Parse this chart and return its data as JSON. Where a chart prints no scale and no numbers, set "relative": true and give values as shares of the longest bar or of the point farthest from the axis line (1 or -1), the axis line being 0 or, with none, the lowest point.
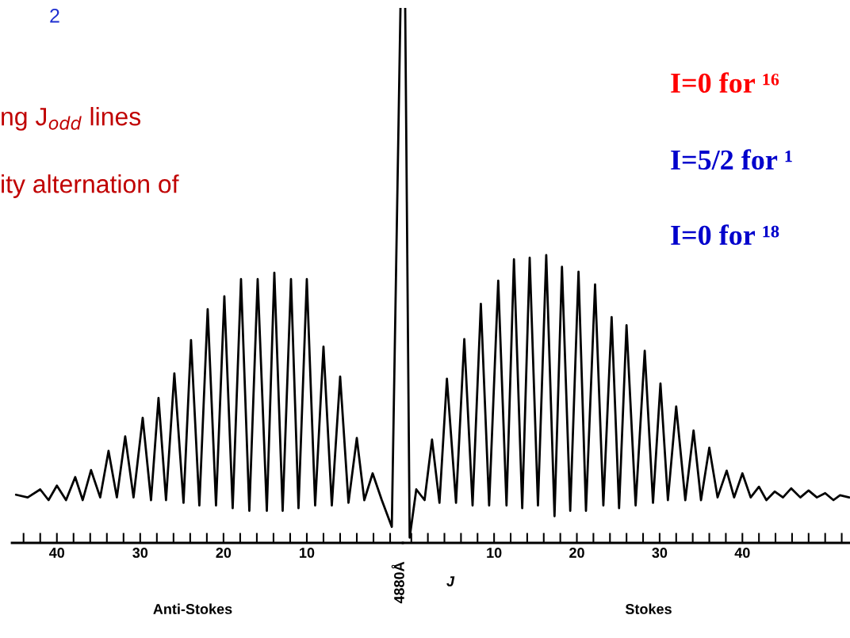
{
  "chart_data": [
    {
      "type": "line",
      "relative": true,
      "xlabel": "Anti-Stokes",
      "color": "#000000",
      "xlim": [
        45.4,
        -1.52
      ],
      "xticks": [
        {
          "value": 44,
          "label": null
        },
        {
          "value": 42,
          "label": null
        },
        40,
        {
          "value": 38,
          "label": null
        },
        {
          "value": 36,
          "label": null
        },
        {
          "value": 34,
          "label": null
        },
        {
          "value": 32,
          "label": null
        },
        30,
        {
          "value": 28,
          "label": null
        },
        {
          "value": 26,
          "label": null
        },
        {
          "value": 24,
          "label": null
        },
        {
          "value": 22,
          "label": null
        },
        20,
        {
          "value": 18,
          "label": null
        },
        {
          "value": 16,
          "label": null
        },
        {
          "value": 14,
          "label": null
        },
        {
          "value": 12,
          "label": null
        },
        10,
        {
          "value": 8,
          "label": null
        },
        {
          "value": 6,
          "label": null
        },
        {
          "value": 4,
          "label": null
        },
        {
          "value": 2,
          "label": null
        },
        {
          "value": 0,
          "label": null
        }
      ],
      "x": [
        44.9,
        43.5,
        42.0,
        41.0,
        40.0,
        38.9,
        37.8,
        36.9,
        35.9,
        34.8,
        33.8,
        32.8,
        31.8,
        30.8,
        29.7,
        28.7,
        27.8,
        26.9,
        25.9,
        24.8,
        23.9,
        22.9,
        21.9,
        20.9,
        19.9,
        18.9,
        17.9,
        16.9,
        15.9,
        14.8,
        13.9,
        12.9,
        11.9,
        11.0,
        10.0,
        9.0,
        8.0,
        7.0,
        6.0,
        5.0,
        4.0,
        3.1,
        2.1,
        1.0,
        -0.2,
        -1.24
      ],
      "values": [
        0.09,
        0.085,
        0.1,
        0.08,
        0.107,
        0.08,
        0.123,
        0.08,
        0.136,
        0.085,
        0.172,
        0.085,
        0.199,
        0.085,
        0.234,
        0.08,
        0.271,
        0.08,
        0.317,
        0.075,
        0.379,
        0.07,
        0.437,
        0.07,
        0.461,
        0.065,
        0.493,
        0.06,
        0.493,
        0.06,
        0.505,
        0.06,
        0.493,
        0.065,
        0.493,
        0.07,
        0.367,
        0.07,
        0.311,
        0.075,
        0.196,
        0.08,
        0.13,
        0.08,
        0.03,
        1.0
      ],
      "annotations": [
        "2",
        "ng J$_{odd}$ lines",
        "ity alternation of"
      ]
    },
    {
      "type": "line",
      "relative": true,
      "xlabel": "Stokes",
      "color": "#000000",
      "xlim": [
        -1.03,
        53.0
      ],
      "xticks": [
        {
          "value": 0,
          "label": null
        },
        {
          "value": 2,
          "label": null
        },
        {
          "value": 4,
          "label": null
        },
        {
          "value": 6,
          "label": null
        },
        {
          "value": 8,
          "label": null
        },
        10,
        {
          "value": 12,
          "label": null
        },
        {
          "value": 14,
          "label": null
        },
        {
          "value": 16,
          "label": null
        },
        {
          "value": 18,
          "label": null
        },
        20,
        {
          "value": 22,
          "label": null
        },
        {
          "value": 24,
          "label": null
        },
        {
          "value": 26,
          "label": null
        },
        {
          "value": 28,
          "label": null
        },
        30,
        {
          "value": 32,
          "label": null
        },
        {
          "value": 34,
          "label": null
        },
        {
          "value": 36,
          "label": null
        },
        {
          "value": 38,
          "label": null
        },
        40,
        {
          "value": 42,
          "label": null
        },
        {
          "value": 44,
          "label": null
        },
        {
          "value": 46,
          "label": null
        },
        {
          "value": 48,
          "label": null
        },
        {
          "value": 50,
          "label": null
        },
        {
          "value": 52,
          "label": null
        }
      ],
      "x": [
        -0.74,
        -0.2,
        0.6,
        1.6,
        2.5,
        3.4,
        4.3,
        5.4,
        6.4,
        7.4,
        8.4,
        9.4,
        10.5,
        11.5,
        12.4,
        13.4,
        14.3,
        15.3,
        16.3,
        17.3,
        18.2,
        19.2,
        20.2,
        21.1,
        22.2,
        23.2,
        24.2,
        25.1,
        26.0,
        27.1,
        28.2,
        29.2,
        30.1,
        31.0,
        32.0,
        33.1,
        34.1,
        35.0,
        36.0,
        37.0,
        38.1,
        39.0,
        40.0,
        41.0,
        42.0,
        42.9,
        43.9,
        44.9,
        45.9,
        47.0,
        48.0,
        49.0,
        50.0,
        51.0,
        51.8,
        52.9
      ],
      "values": [
        1.0,
        0.01,
        0.1,
        0.08,
        0.193,
        0.075,
        0.307,
        0.075,
        0.381,
        0.07,
        0.447,
        0.07,
        0.49,
        0.07,
        0.53,
        0.065,
        0.533,
        0.07,
        0.538,
        0.05,
        0.516,
        0.06,
        0.507,
        0.06,
        0.483,
        0.07,
        0.422,
        0.065,
        0.407,
        0.07,
        0.359,
        0.075,
        0.298,
        0.08,
        0.255,
        0.08,
        0.21,
        0.08,
        0.178,
        0.085,
        0.135,
        0.085,
        0.13,
        0.085,
        0.105,
        0.08,
        0.096,
        0.085,
        0.102,
        0.085,
        0.098,
        0.085,
        0.093,
        0.08,
        0.089,
        0.085
      ],
      "annotations": [
        "4880Å",
        "J",
        "I=0 for ¹⁶",
        "I=5/2 for ¹",
        "I=0 for ¹⁸"
      ]
    }
  ]
}
